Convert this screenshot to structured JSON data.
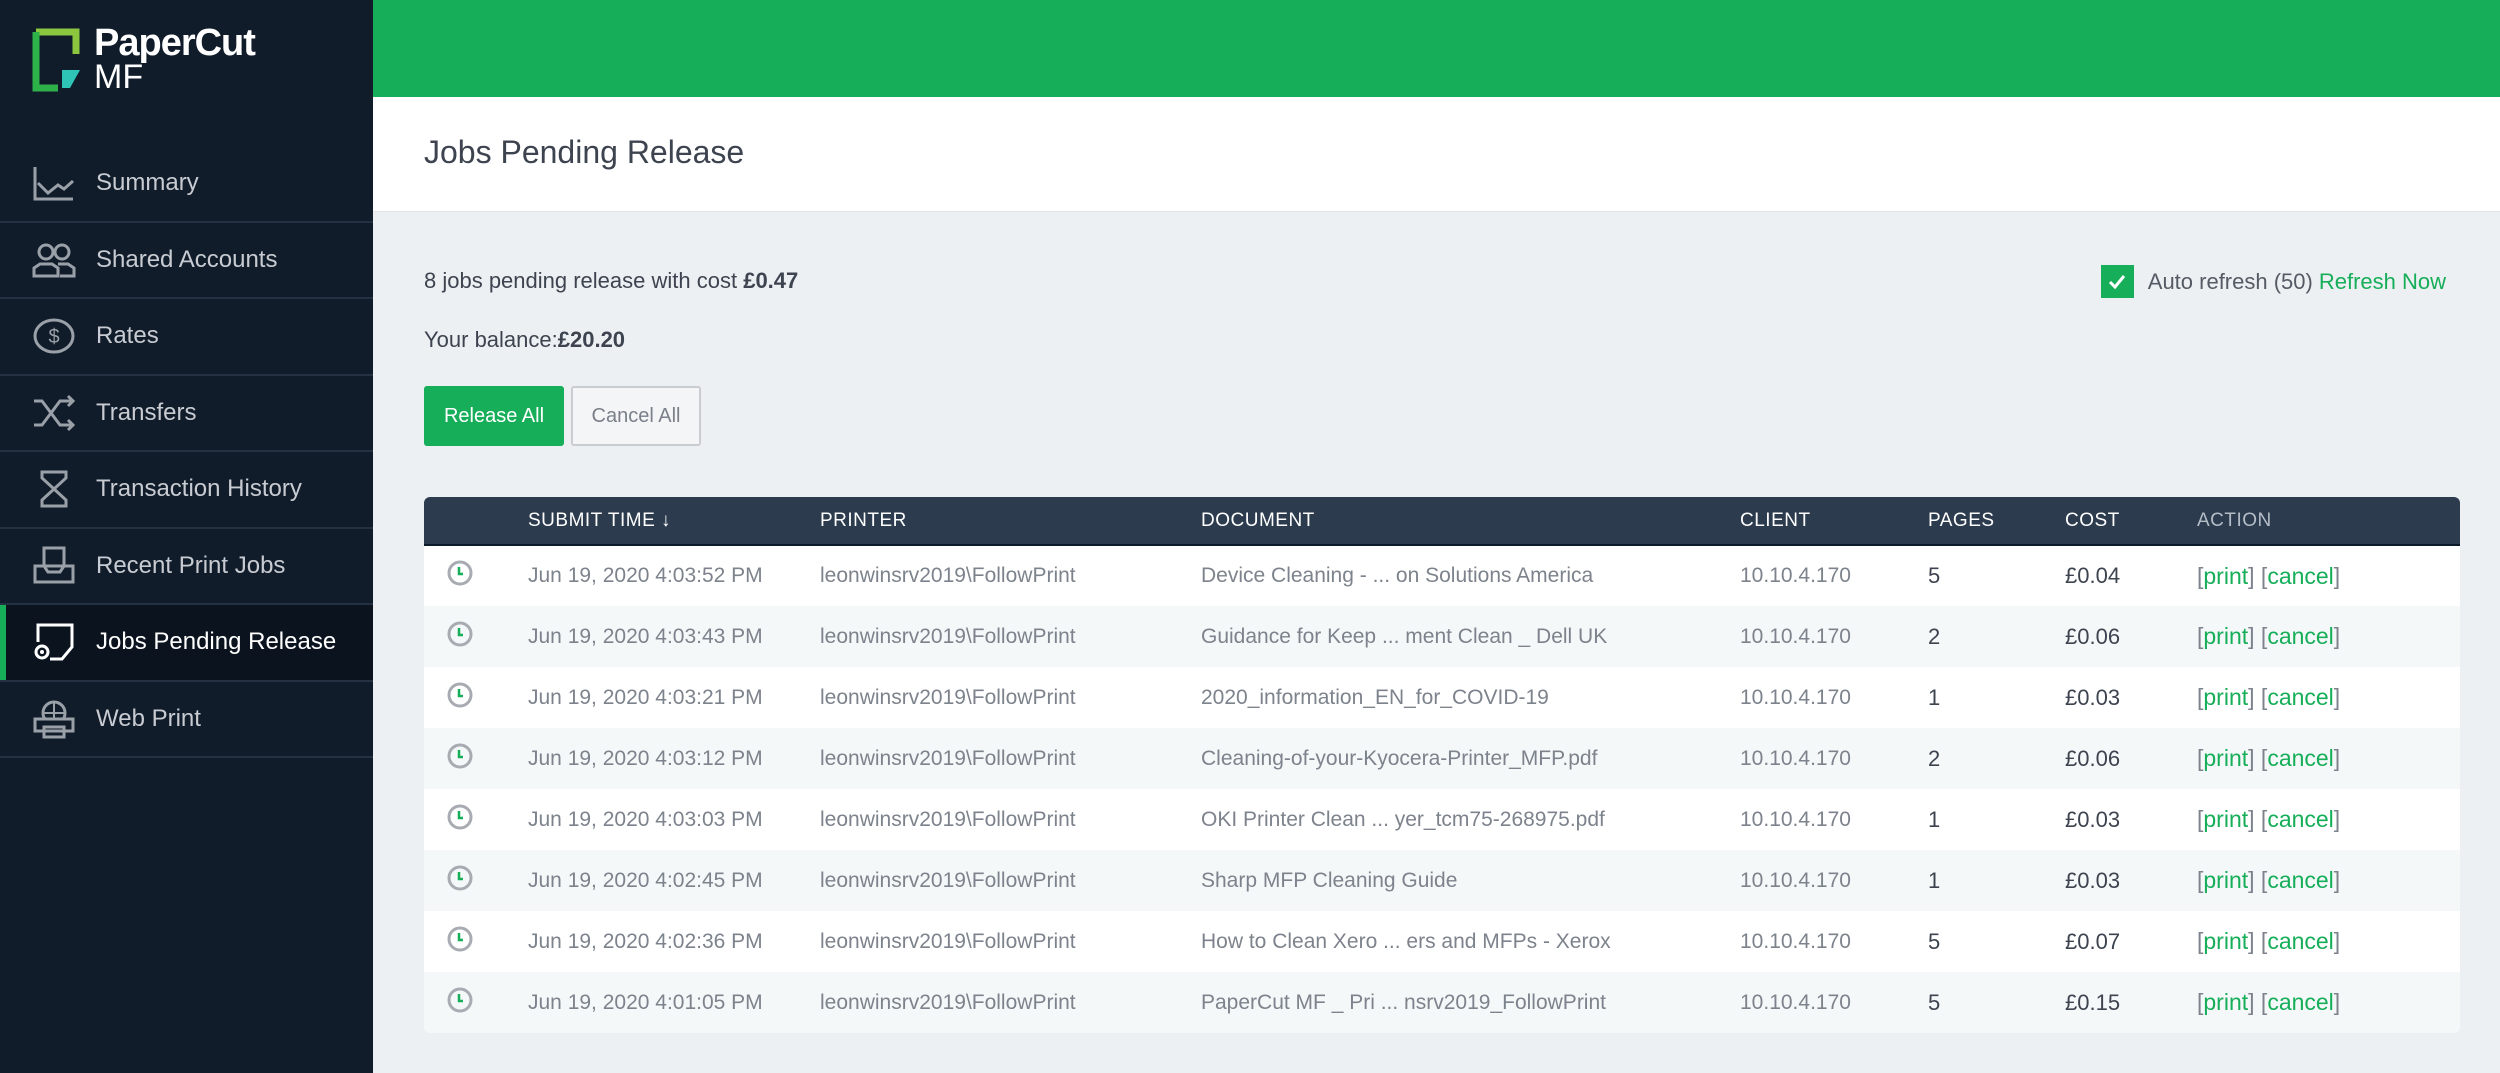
{
  "brand": {
    "name": "PaperCut",
    "sub": "MF",
    "accent": "#16ae59"
  },
  "sidebar": {
    "items": [
      {
        "label": "Summary",
        "icon": "chart-line-icon"
      },
      {
        "label": "Shared Accounts",
        "icon": "users-icon"
      },
      {
        "label": "Rates",
        "icon": "dollar-circle-icon"
      },
      {
        "label": "Transfers",
        "icon": "shuffle-icon"
      },
      {
        "label": "Transaction History",
        "icon": "hourglass-icon"
      },
      {
        "label": "Recent Print Jobs",
        "icon": "inbox-tray-icon"
      },
      {
        "label": "Jobs Pending Release",
        "icon": "pending-document-icon",
        "active": true
      },
      {
        "label": "Web Print",
        "icon": "globe-printer-icon"
      }
    ]
  },
  "page": {
    "title": "Jobs Pending Release",
    "summary_prefix": "8 jobs pending release with cost ",
    "summary_cost": "£0.47",
    "balance_label": "Your balance:",
    "balance_value": "£20.20",
    "release_all": "Release All",
    "cancel_all": "Cancel All",
    "auto_refresh_label": "Auto refresh (50)",
    "auto_refresh_checked": true,
    "refresh_now": "Refresh Now"
  },
  "table": {
    "headers": [
      "SUBMIT TIME",
      "PRINTER",
      "DOCUMENT",
      "CLIENT",
      "PAGES",
      "COST",
      "ACTION"
    ],
    "sort_icon": "arrow-down-icon",
    "print_label": "print",
    "cancel_label": "cancel",
    "rows": [
      {
        "time": "Jun 19, 2020 4:03:52 PM",
        "printer": "leonwinsrv2019\\FollowPrint",
        "document": "Device Cleaning - ... on Solutions America",
        "client": "10.10.4.170",
        "pages": "5",
        "cost": "£0.04"
      },
      {
        "time": "Jun 19, 2020 4:03:43 PM",
        "printer": "leonwinsrv2019\\FollowPrint",
        "document": "Guidance for Keep ... ment Clean _ Dell UK",
        "client": "10.10.4.170",
        "pages": "2",
        "cost": "£0.06"
      },
      {
        "time": "Jun 19, 2020 4:03:21 PM",
        "printer": "leonwinsrv2019\\FollowPrint",
        "document": "2020_information_EN_for_COVID-19",
        "client": "10.10.4.170",
        "pages": "1",
        "cost": "£0.03"
      },
      {
        "time": "Jun 19, 2020 4:03:12 PM",
        "printer": "leonwinsrv2019\\FollowPrint",
        "document": "Cleaning-of-your-Kyocera-Printer_MFP.pdf",
        "client": "10.10.4.170",
        "pages": "2",
        "cost": "£0.06"
      },
      {
        "time": "Jun 19, 2020 4:03:03 PM",
        "printer": "leonwinsrv2019\\FollowPrint",
        "document": "OKI Printer Clean ... yer_tcm75-268975.pdf",
        "client": "10.10.4.170",
        "pages": "1",
        "cost": "£0.03"
      },
      {
        "time": "Jun 19, 2020 4:02:45 PM",
        "printer": "leonwinsrv2019\\FollowPrint",
        "document": "Sharp MFP Cleaning Guide",
        "client": "10.10.4.170",
        "pages": "1",
        "cost": "£0.03"
      },
      {
        "time": "Jun 19, 2020 4:02:36 PM",
        "printer": "leonwinsrv2019\\FollowPrint",
        "document": "How to Clean Xero ... ers and MFPs - Xerox",
        "client": "10.10.4.170",
        "pages": "5",
        "cost": "£0.07"
      },
      {
        "time": "Jun 19, 2020 4:01:05 PM",
        "printer": "leonwinsrv2019\\FollowPrint",
        "document": "PaperCut MF _ Pri ... nsrv2019_FollowPrint",
        "client": "10.10.4.170",
        "pages": "5",
        "cost": "£0.15"
      }
    ]
  }
}
